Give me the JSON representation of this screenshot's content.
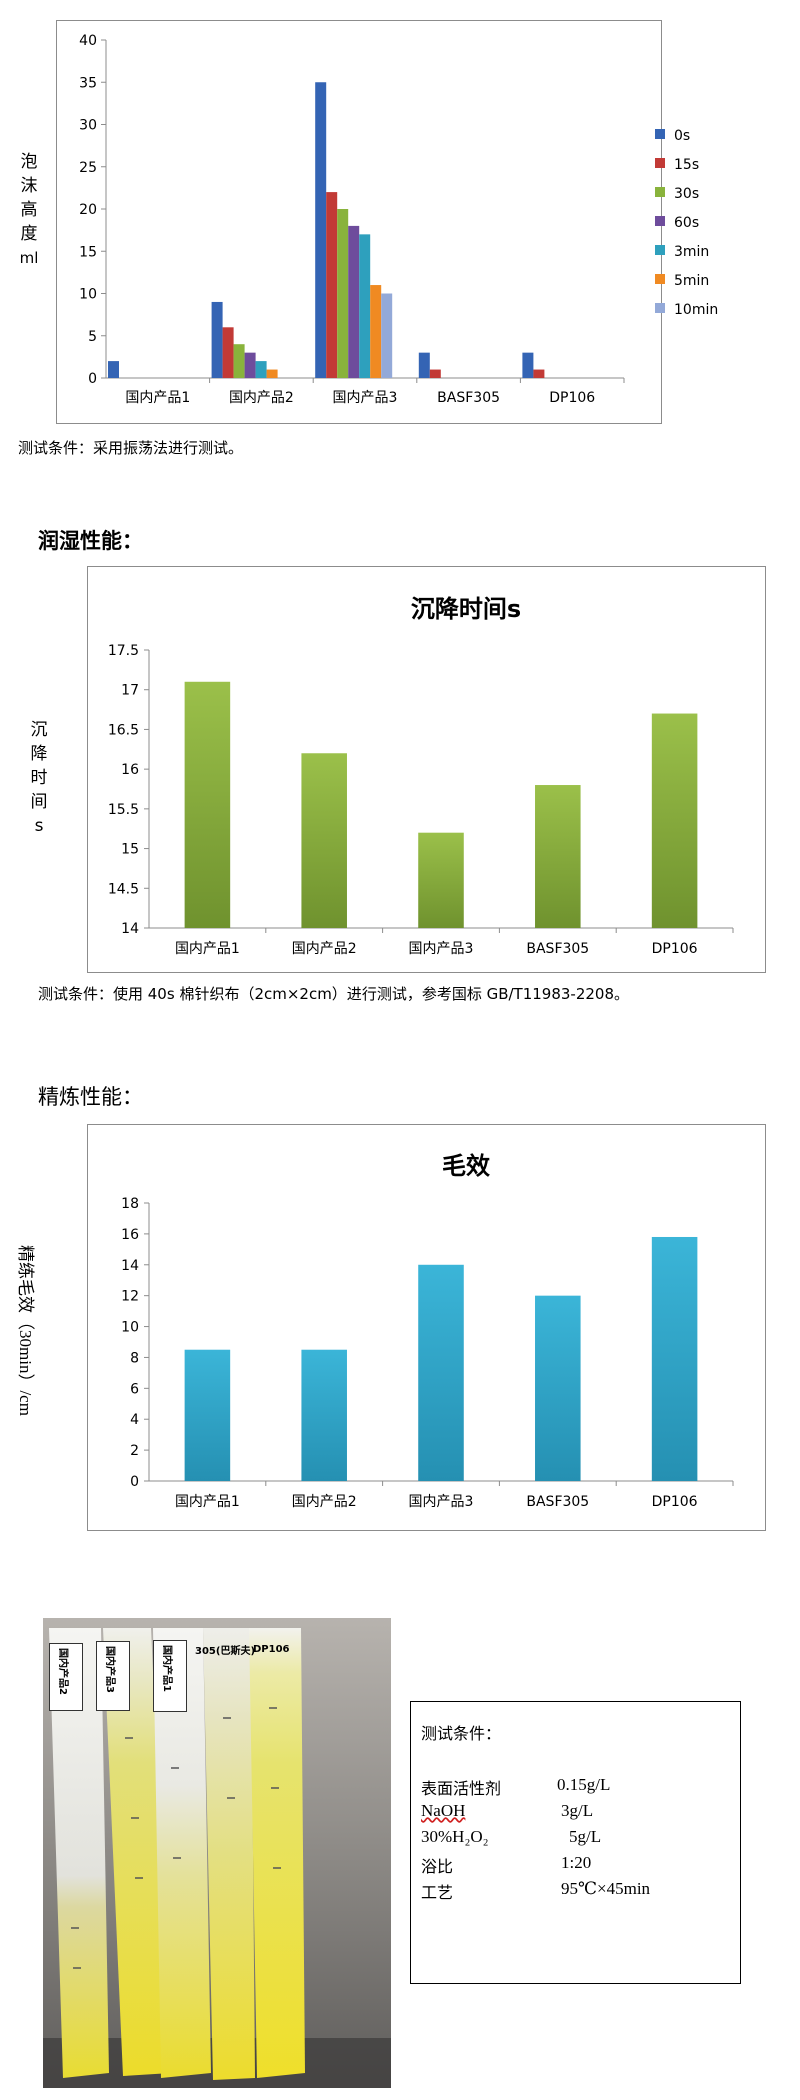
{
  "chart1": {
    "ylabel_chars": [
      "泡",
      "沫",
      "高",
      "度",
      "ml"
    ],
    "note": "测试条件：采用振荡法进行测试。"
  },
  "section2": {
    "title": "润湿性能：",
    "ylabel_chars": [
      "沉",
      "降",
      "时",
      "间",
      "s"
    ],
    "note": "测试条件：使用 40s 棉针织布（2cm×2cm）进行测试，参考国标 GB/T11983-2208。"
  },
  "section3": {
    "title": "精炼性能：",
    "ylabel": "精练毛效（30min）/cm"
  },
  "photo": {
    "tags": [
      "国内产品2",
      "国内产品3",
      "国内产品1",
      "305(巴斯夫)",
      "DP106"
    ]
  },
  "conditions": {
    "title": "测试条件：",
    "rows": [
      {
        "name": "表面活性剂",
        "value": "0.15g/L"
      },
      {
        "name": "NaOH",
        "value": "3g/L"
      },
      {
        "name": "30%H₂O₂",
        "value": "5g/L"
      },
      {
        "name": "浴比",
        "value": "1:20"
      },
      {
        "name": "工艺",
        "value": "95℃×45min"
      }
    ]
  },
  "chart_data": [
    {
      "type": "bar",
      "title": "",
      "xlabel": "",
      "ylabel": "泡沫高度ml",
      "categories": [
        "国内产品1",
        "国内产品2",
        "国内产品3",
        "BASF305",
        "DP106"
      ],
      "yticks": [
        "0",
        "5",
        "10",
        "15",
        "20",
        "25",
        "30",
        "35",
        "40"
      ],
      "ylim": [
        0,
        40
      ],
      "legend_position": "right",
      "series": [
        {
          "name": "0s",
          "color": "#3464b4",
          "values": [
            2,
            9,
            35,
            3,
            3
          ]
        },
        {
          "name": "15s",
          "color": "#c23a36",
          "values": [
            0,
            6,
            22,
            1,
            1
          ]
        },
        {
          "name": "30s",
          "color": "#89b33c",
          "values": [
            0,
            4,
            20,
            0,
            0
          ]
        },
        {
          "name": "60s",
          "color": "#6e4c9c",
          "values": [
            0,
            3,
            18,
            0,
            0
          ]
        },
        {
          "name": "3min",
          "color": "#2ea0bd",
          "values": [
            0,
            2,
            17,
            0,
            0
          ]
        },
        {
          "name": "5min",
          "color": "#f08a22",
          "values": [
            0,
            1,
            11,
            0,
            0
          ]
        },
        {
          "name": "10min",
          "color": "#93a9d8",
          "values": [
            0,
            0,
            10,
            0,
            0
          ]
        }
      ]
    },
    {
      "type": "bar",
      "title": "沉降时间s",
      "xlabel": "",
      "ylabel": "沉降时间s",
      "categories": [
        "国内产品1",
        "国内产品2",
        "国内产品3",
        "BASF305",
        "DP106"
      ],
      "yticks": [
        "14",
        "14.5",
        "15",
        "15.5",
        "16",
        "16.5",
        "17",
        "17.5"
      ],
      "ylim": [
        14,
        17.5
      ],
      "color_top": "#9bc04a",
      "color_bottom": "#6f922e",
      "values": [
        17.1,
        16.2,
        15.2,
        15.8,
        16.7
      ]
    },
    {
      "type": "bar",
      "title": "毛效",
      "xlabel": "",
      "ylabel": "精练毛效（30min）/cm",
      "categories": [
        "国内产品1",
        "国内产品2",
        "国内产品3",
        "BASF305",
        "DP106"
      ],
      "yticks": [
        "0",
        "2",
        "4",
        "6",
        "8",
        "10",
        "12",
        "14",
        "16",
        "18"
      ],
      "ylim": [
        0,
        18
      ],
      "color_top": "#3bb5d8",
      "color_bottom": "#2590b2",
      "values": [
        8.5,
        8.5,
        14,
        12,
        15.8
      ]
    }
  ]
}
